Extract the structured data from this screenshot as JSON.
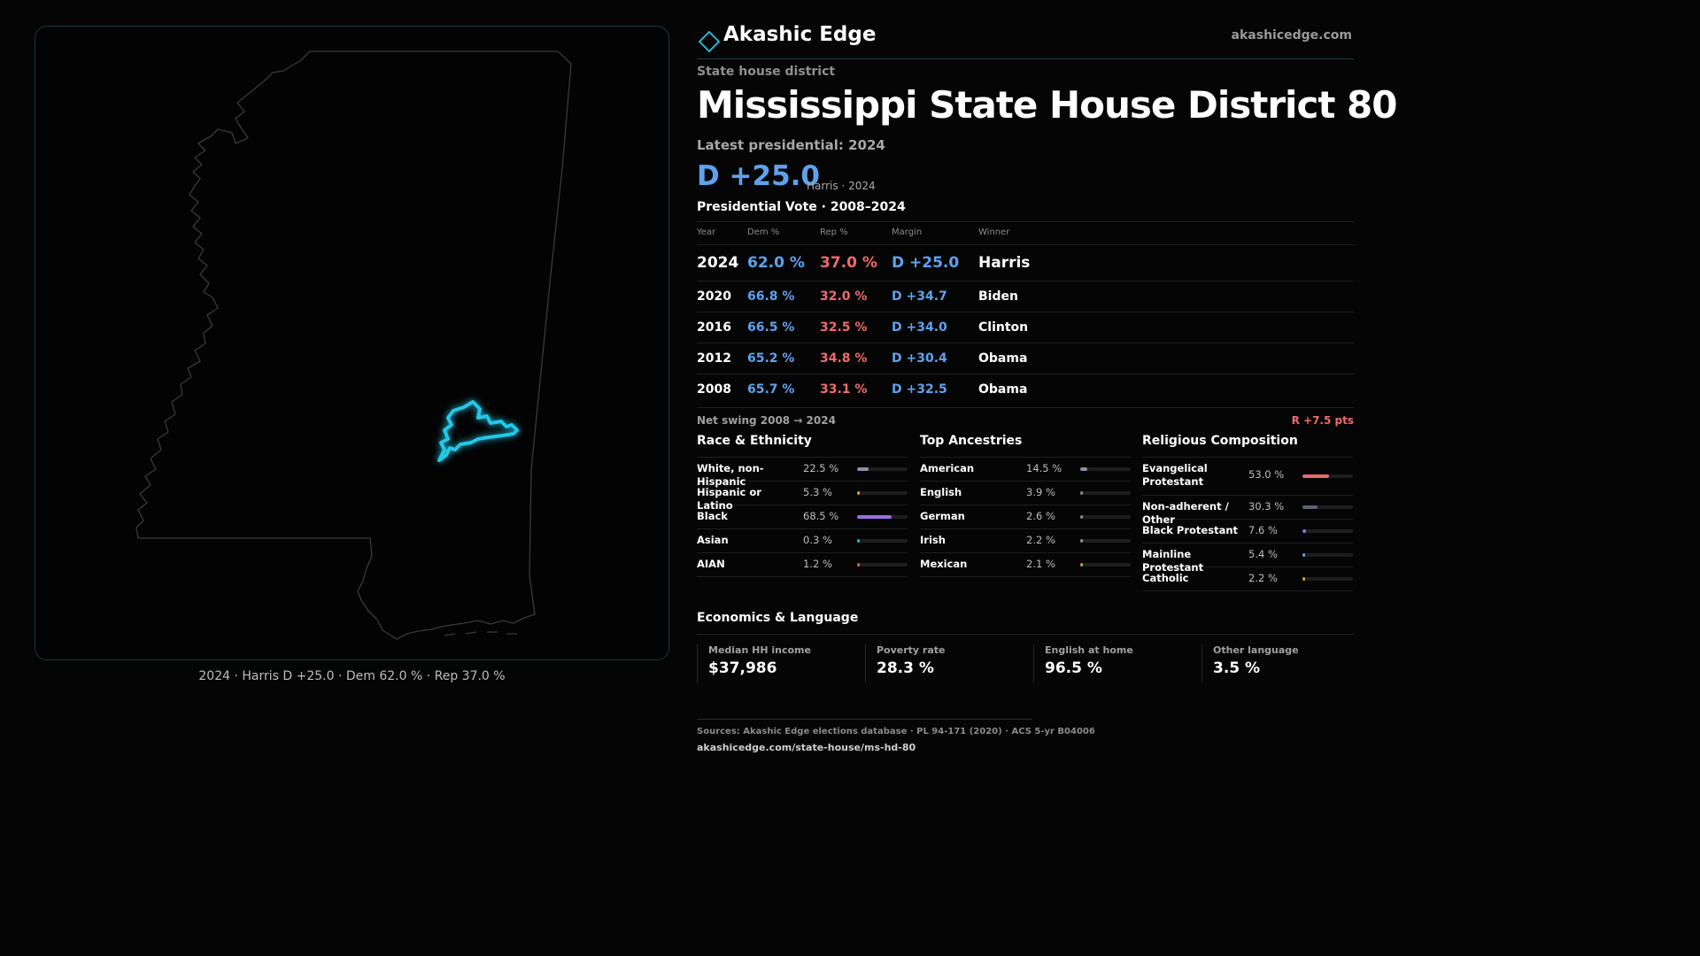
{
  "brand": {
    "name": "Akashic Edge",
    "url": "akashicedge.com",
    "accent": "#22c8e8"
  },
  "header": {
    "kicker": "State house district",
    "title": "Mississippi State House District 80",
    "latest_label": "Latest presidential: 2024",
    "margin": "D +25.0",
    "margin_sub": "Harris · 2024"
  },
  "map": {
    "caption": "2024 · Harris D +25.0 · Dem 62.0 % · Rep 37.0 %",
    "district_highlight_color": "#22c8e8",
    "state_outline_color": "#3a3a3a"
  },
  "presidential": {
    "heading": "Presidential Vote · 2008–2024",
    "columns": [
      "Year",
      "Dem %",
      "Rep %",
      "Margin",
      "Winner"
    ],
    "rows": [
      {
        "year": "2024",
        "dem": "62.0 %",
        "rep": "37.0 %",
        "margin": "D +25.0",
        "winner": "Harris"
      },
      {
        "year": "2020",
        "dem": "66.8 %",
        "rep": "32.0 %",
        "margin": "D +34.7",
        "winner": "Biden"
      },
      {
        "year": "2016",
        "dem": "66.5 %",
        "rep": "32.5 %",
        "margin": "D +34.0",
        "winner": "Clinton"
      },
      {
        "year": "2012",
        "dem": "65.2 %",
        "rep": "34.8 %",
        "margin": "D +30.4",
        "winner": "Obama"
      },
      {
        "year": "2008",
        "dem": "65.7 %",
        "rep": "33.1 %",
        "margin": "D +32.5",
        "winner": "Obama"
      }
    ],
    "swing_label": "Net swing 2008 → 2024",
    "swing_value": "R +7.5 pts"
  },
  "race": {
    "heading": "Race & Ethnicity",
    "items": [
      {
        "label": "White, non-Hispanic",
        "pct": "22.5 %",
        "value": 22.5,
        "color": "#8a93a6"
      },
      {
        "label": "Hispanic or Latino",
        "pct": "5.3 %",
        "value": 5.3,
        "color": "#e3a21a"
      },
      {
        "label": "Black",
        "pct": "68.5 %",
        "value": 68.5,
        "color": "#9a6ee6"
      },
      {
        "label": "Asian",
        "pct": "0.3 %",
        "value": 0.3,
        "color": "#3ab0c8"
      },
      {
        "label": "AIAN",
        "pct": "1.2 %",
        "value": 1.2,
        "color": "#c8703a"
      }
    ]
  },
  "ancestry": {
    "heading": "Top Ancestries",
    "items": [
      {
        "label": "American",
        "pct": "14.5 %",
        "value": 14.5,
        "color": "#8a93a6"
      },
      {
        "label": "English",
        "pct": "3.9 %",
        "value": 3.9,
        "color": "#8a93a6"
      },
      {
        "label": "German",
        "pct": "2.6 %",
        "value": 2.6,
        "color": "#8a93a6"
      },
      {
        "label": "Irish",
        "pct": "2.2 %",
        "value": 2.2,
        "color": "#8a93a6"
      },
      {
        "label": "Mexican",
        "pct": "2.1 %",
        "value": 2.1,
        "color": "#c8a03a"
      }
    ]
  },
  "religion": {
    "heading": "Religious Composition",
    "items": [
      {
        "label": "Evangelical Protestant",
        "pct": "53.0 %",
        "value": 53.0,
        "color": "#e56b6b"
      },
      {
        "label": "Non-adherent / Other",
        "pct": "30.3 %",
        "value": 30.3,
        "color": "#5c6478"
      },
      {
        "label": "Black Protestant",
        "pct": "7.6 %",
        "value": 7.6,
        "color": "#9a6ee6"
      },
      {
        "label": "Mainline Protestant",
        "pct": "5.4 %",
        "value": 5.4,
        "color": "#5ea2ee"
      },
      {
        "label": "Catholic",
        "pct": "2.2 %",
        "value": 2.2,
        "color": "#e3a21a"
      }
    ]
  },
  "economics": {
    "heading": "Economics & Language",
    "items": [
      {
        "label": "Median HH income",
        "value": "$37,986"
      },
      {
        "label": "Poverty rate",
        "value": "28.3 %"
      },
      {
        "label": "English at home",
        "value": "96.5 %"
      },
      {
        "label": "Other language",
        "value": "3.5 %"
      }
    ]
  },
  "footer": {
    "sources": "Sources: Akashic Edge elections database · PL 94-171 (2020) · ACS 5-yr B04006",
    "url": "akashicedge.com/state-house/ms-hd-80"
  }
}
